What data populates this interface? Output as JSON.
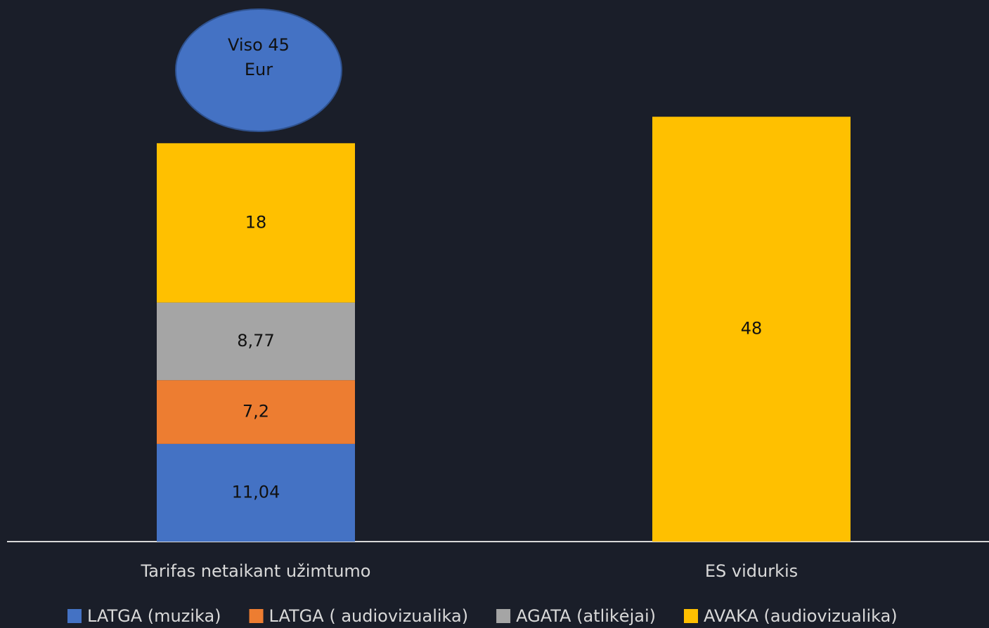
{
  "chart_data": {
    "type": "stacked_bar",
    "annotation": "Viso 45 Eur",
    "categories": [
      "Tarifas netaikant užimtumo",
      "ES vidurkis"
    ],
    "series": [
      {
        "name": "LATGA (muzika)",
        "color": "#4472c4",
        "values": [
          11.04,
          null
        ],
        "value_labels": [
          "11,04",
          null
        ]
      },
      {
        "name": "LATGA ( audiovizualika)",
        "color": "#ed7d31",
        "values": [
          7.2,
          null
        ],
        "value_labels": [
          "7,2",
          null
        ]
      },
      {
        "name": "AGATA (atlikėjai)",
        "color": "#a5a5a5",
        "values": [
          8.77,
          null
        ],
        "value_labels": [
          "8,77",
          null
        ]
      },
      {
        "name": "AVAKA (audiovizualika)",
        "color": "#ffc000",
        "values": [
          18,
          48
        ]
      }
    ],
    "legend": "bottom"
  }
}
